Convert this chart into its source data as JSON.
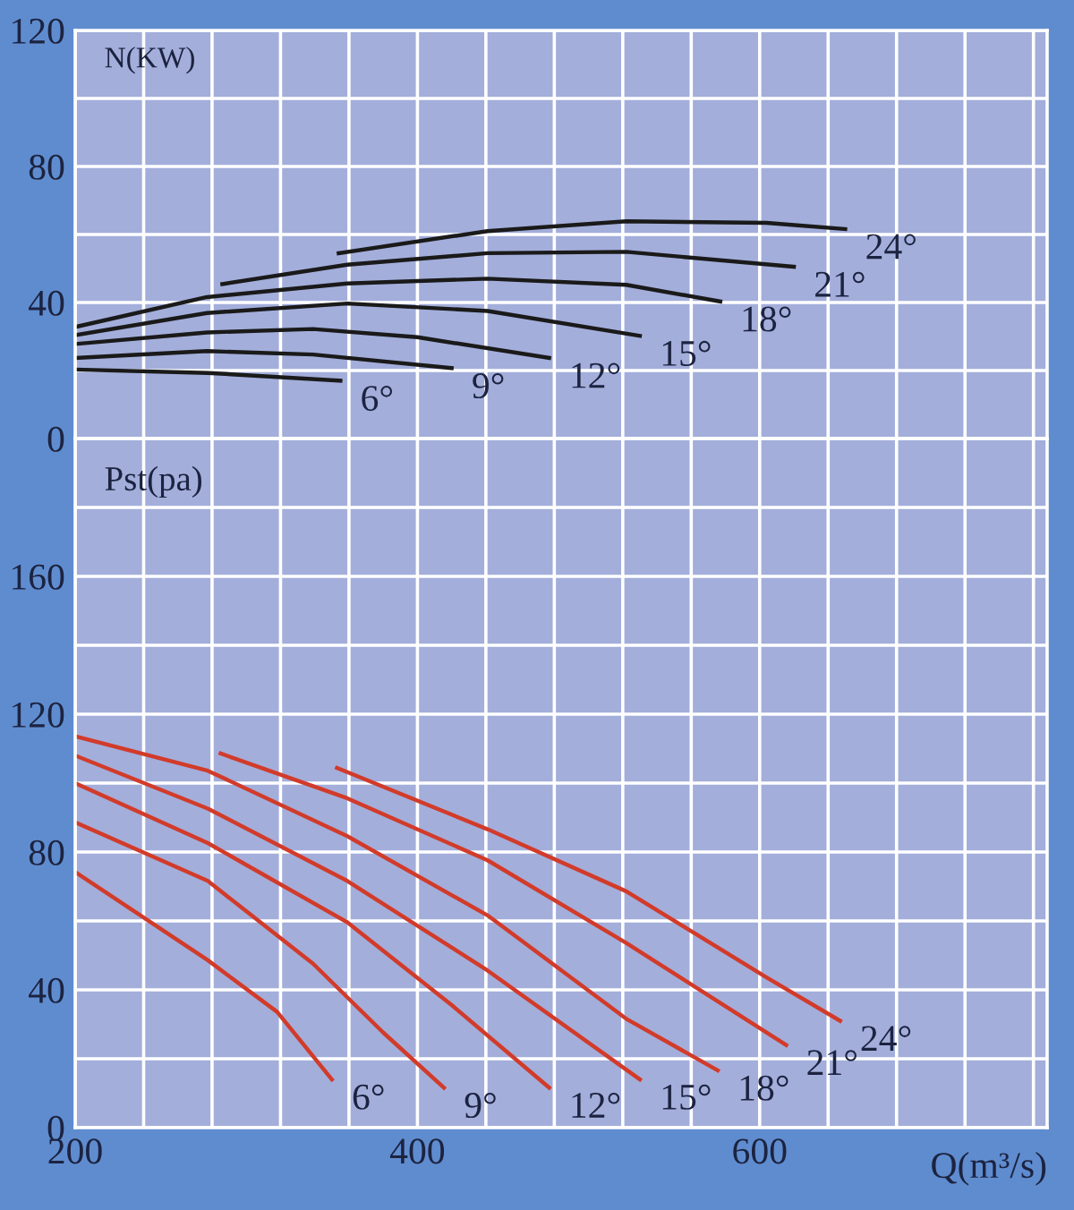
{
  "chart_data": [
    {
      "type": "line",
      "ylabel": "N(KW)",
      "xlim": [
        200,
        768
      ],
      "ylim": [
        0,
        120
      ],
      "xticks": [
        200,
        {
          "value": 240,
          "label": null
        },
        {
          "value": 280,
          "label": null
        },
        {
          "value": 320,
          "label": null
        },
        {
          "value": 360,
          "label": null
        },
        400,
        {
          "value": 440,
          "label": null
        },
        {
          "value": 480,
          "label": null
        },
        {
          "value": 520,
          "label": null
        },
        {
          "value": 560,
          "label": null
        },
        600,
        {
          "value": 640,
          "label": null
        },
        {
          "value": 680,
          "label": null
        },
        {
          "value": 720,
          "label": null
        },
        {
          "value": 760,
          "label": null
        }
      ],
      "yticks": [
        0,
        {
          "value": 20,
          "label": null
        },
        40,
        {
          "value": 60,
          "label": null
        },
        80,
        {
          "value": 100,
          "label": null
        },
        120
      ],
      "tick_labels": "y",
      "grid": true,
      "legend": false,
      "marker": "none",
      "line_style": "solid",
      "series": [
        {
          "name": "6°",
          "color": "#1a1a1a",
          "x": [
            200,
            277.5,
            355
          ],
          "values": [
            20.3,
            19.3,
            17.0
          ]
        },
        {
          "name": "9°",
          "color": "#1a1a1a",
          "x": [
            200,
            277,
            339,
            420
          ],
          "values": [
            23.7,
            25.7,
            24.7,
            20.7
          ]
        },
        {
          "name": "12°",
          "color": "#1a1a1a",
          "x": [
            200,
            277,
            339,
            400,
            477
          ],
          "values": [
            27.8,
            31.2,
            32.2,
            29.8,
            23.7
          ]
        },
        {
          "name": "15°",
          "color": "#1a1a1a",
          "x": [
            200,
            277,
            359,
            441,
            530
          ],
          "values": [
            30.4,
            36.9,
            39.7,
            37.5,
            30.2
          ]
        },
        {
          "name": "18°",
          "color": "#1a1a1a",
          "x": [
            200,
            277,
            359,
            441,
            522,
            577
          ],
          "values": [
            32.8,
            41.6,
            45.6,
            47.0,
            45.2,
            40.3
          ]
        },
        {
          "name": "21°",
          "color": "#1a1a1a",
          "x": [
            286,
            359,
            441,
            522,
            620
          ],
          "values": [
            45.4,
            51.1,
            54.5,
            54.9,
            50.5
          ]
        },
        {
          "name": "24°",
          "color": "#1a1a1a",
          "x": [
            354,
            441,
            522,
            604,
            650
          ],
          "values": [
            54.5,
            61.0,
            63.9,
            63.4,
            61.6
          ]
        }
      ]
    },
    {
      "type": "line",
      "ylabel": "Pst(pa)",
      "xlabel": "Q(m³/s)",
      "xlim": [
        200,
        768
      ],
      "ylim": [
        0,
        200
      ],
      "xticks": [
        200,
        {
          "value": 240,
          "label": null
        },
        {
          "value": 280,
          "label": null
        },
        {
          "value": 320,
          "label": null
        },
        {
          "value": 360,
          "label": null
        },
        400,
        {
          "value": 440,
          "label": null
        },
        {
          "value": 480,
          "label": null
        },
        {
          "value": 520,
          "label": null
        },
        {
          "value": 560,
          "label": null
        },
        600,
        {
          "value": 640,
          "label": null
        },
        {
          "value": 680,
          "label": null
        },
        {
          "value": 720,
          "label": null
        },
        {
          "value": 760,
          "label": null
        }
      ],
      "yticks": [
        0,
        {
          "value": 20,
          "label": null
        },
        40,
        {
          "value": 60,
          "label": null
        },
        80,
        {
          "value": 100,
          "label": null
        },
        120,
        {
          "value": 140,
          "label": null
        },
        160,
        {
          "value": 180,
          "label": null
        },
        {
          "value": 200,
          "label": null
        }
      ],
      "grid": true,
      "legend": false,
      "marker": "none",
      "line_style": "solid",
      "series": [
        {
          "name": "6°",
          "color": "#d23b2a",
          "x": [
            200,
            277.5,
            318,
            350
          ],
          "values": [
            74.2,
            48.6,
            33.6,
            14
          ]
        },
        {
          "name": "9°",
          "color": "#d23b2a",
          "x": [
            200,
            277.5,
            339,
            380,
            415.5
          ],
          "values": [
            88.6,
            71.6,
            47.6,
            27.6,
            11.6
          ]
        },
        {
          "name": "12°",
          "color": "#d23b2a",
          "x": [
            200,
            277.5,
            359,
            420,
            477
          ],
          "values": [
            100,
            82.6,
            59.6,
            35.6,
            11.6
          ]
        },
        {
          "name": "15°",
          "color": "#d23b2a",
          "x": [
            200,
            277.5,
            359,
            441,
            530
          ],
          "values": [
            108,
            92.6,
            71.6,
            45.6,
            14
          ]
        },
        {
          "name": "18°",
          "color": "#d23b2a",
          "x": [
            200,
            277.5,
            359,
            441,
            522,
            575.5
          ],
          "values": [
            113.6,
            103.6,
            84.6,
            61.6,
            31.6,
            16.6
          ]
        },
        {
          "name": "21°",
          "color": "#d23b2a",
          "x": [
            285,
            359,
            441,
            522,
            615.5
          ],
          "values": [
            108.6,
            95.6,
            77.6,
            53.6,
            24
          ]
        },
        {
          "name": "24°",
          "color": "#d23b2a",
          "x": [
            353,
            441,
            522,
            604,
            647
          ],
          "values": [
            104.4,
            86.6,
            68.6,
            43.6,
            31
          ]
        }
      ]
    }
  ]
}
